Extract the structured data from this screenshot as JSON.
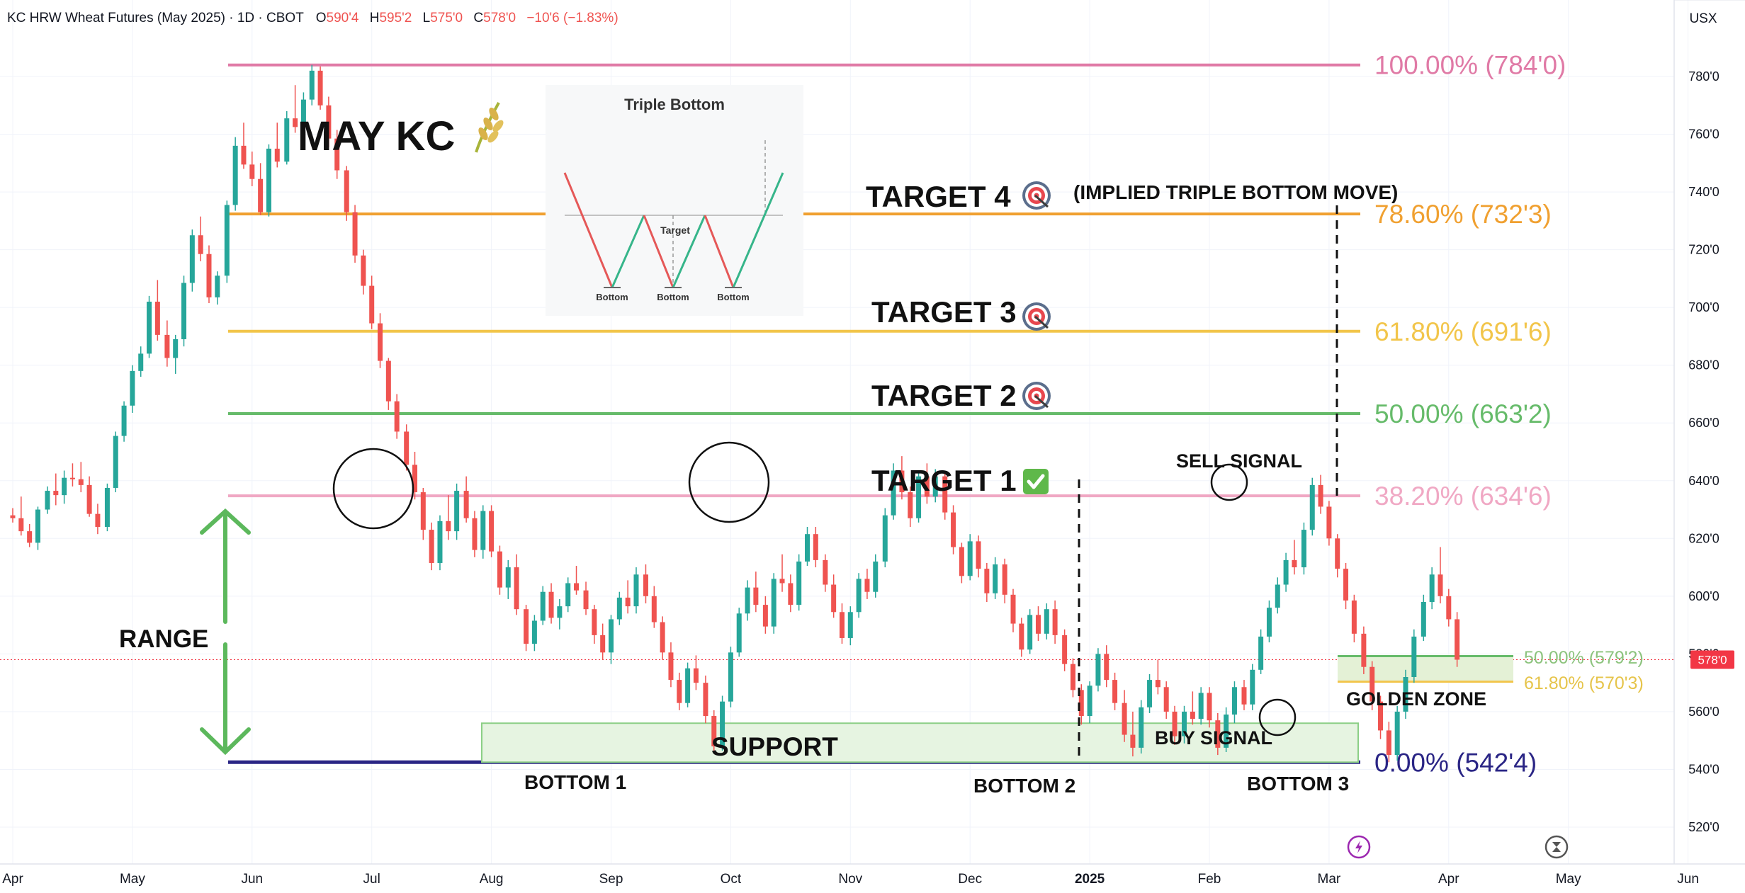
{
  "header": {
    "symbol": "KC HRW Wheat Futures (May 2025) · 1D · CBOT",
    "open_label": "O",
    "open": "590'4",
    "high_label": "H",
    "high": "595'2",
    "low_label": "L",
    "low": "575'0",
    "close_label": "C",
    "close": "578'0",
    "change": "−10'6 (−1.83%)",
    "currency": "USX"
  },
  "colors": {
    "up": "#26a69a",
    "down": "#ef5350",
    "fib100": "#e07aa6",
    "fib786": "#f0a030",
    "fib618": "#f2c54a",
    "fib50": "#66bb6a",
    "fib382": "#f0a8c4",
    "fib0": "#2a2585",
    "support_fill": "#e6f4e1",
    "support_stroke": "#8ccf86",
    "range_arrow": "#5cb85c",
    "price_tag": "#f23645"
  },
  "chart_data": {
    "type": "candlestick",
    "y_unit": "cents per bushel",
    "ylim": [
      510,
      795
    ],
    "y_ticks": [
      "520'0",
      "540'0",
      "560'0",
      "580'0",
      "600'0",
      "620'0",
      "640'0",
      "660'0",
      "680'0",
      "700'0",
      "720'0",
      "740'0",
      "760'0",
      "780'0"
    ],
    "y_tick_values": [
      520,
      540,
      560,
      580,
      600,
      620,
      640,
      660,
      680,
      700,
      720,
      740,
      760,
      780
    ],
    "x_ticks": [
      "Apr",
      "May",
      "Jun",
      "Jul",
      "Aug",
      "Sep",
      "Oct",
      "Nov",
      "Dec",
      "2025",
      "Feb",
      "Mar",
      "Apr",
      "May",
      "Jun"
    ],
    "last_price": "578'0",
    "last_price_value": 578.0,
    "fib_levels": [
      {
        "label": "100.00% (784'0)",
        "value": 784.0,
        "color_key": "fib100"
      },
      {
        "label": "78.60% (732'3)",
        "value": 732.375,
        "color_key": "fib786"
      },
      {
        "label": "61.80% (691'6)",
        "value": 691.75,
        "color_key": "fib618"
      },
      {
        "label": "50.00% (663'2)",
        "value": 663.25,
        "color_key": "fib50"
      },
      {
        "label": "38.20% (634'6)",
        "value": 634.75,
        "color_key": "fib382"
      },
      {
        "label": "0.00% (542'4)",
        "value": 542.5,
        "color_key": "fib0"
      }
    ],
    "golden_zone": {
      "label": "GOLDEN ZONE",
      "upper_label": "50.00% (579'2)",
      "upper": 579.25,
      "lower_label": "61.80% (570'3)",
      "lower": 570.375
    },
    "support": {
      "label": "SUPPORT",
      "low": 542.5,
      "high": 556
    },
    "candles": [
      [
        0.0,
        628.0,
        630.5,
        625.5,
        627.0
      ],
      [
        0.07,
        627.0,
        634.5,
        621.0,
        622.5
      ],
      [
        0.14,
        622.5,
        625.0,
        617.0,
        618.5
      ],
      [
        0.21,
        618.5,
        631.0,
        616.0,
        630.0
      ],
      [
        0.29,
        630.0,
        638.0,
        628.5,
        636.5
      ],
      [
        0.36,
        636.5,
        642.5,
        631.5,
        635.0
      ],
      [
        0.43,
        635.0,
        643.5,
        632.0,
        641.0
      ],
      [
        0.5,
        641.0,
        646.0,
        638.0,
        640.5
      ],
      [
        0.57,
        640.5,
        646.5,
        636.0,
        638.5
      ],
      [
        0.64,
        638.5,
        641.5,
        627.5,
        628.5
      ],
      [
        0.71,
        628.5,
        632.0,
        621.5,
        624.0
      ],
      [
        0.79,
        624.0,
        639.0,
        622.5,
        637.5
      ],
      [
        0.86,
        637.5,
        657.0,
        636.0,
        655.5
      ],
      [
        0.93,
        655.5,
        667.5,
        653.5,
        666.0
      ],
      [
        1.0,
        666.0,
        680.0,
        663.5,
        678.0
      ],
      [
        1.07,
        678.0,
        686.5,
        676.0,
        684.0
      ],
      [
        1.14,
        684.0,
        704.0,
        682.5,
        702.0
      ],
      [
        1.21,
        702.0,
        709.5,
        688.5,
        690.5
      ],
      [
        1.29,
        690.5,
        695.5,
        679.5,
        682.5
      ],
      [
        1.36,
        682.5,
        690.5,
        677.0,
        689.0
      ],
      [
        1.43,
        689.0,
        711.0,
        686.5,
        708.5
      ],
      [
        1.5,
        708.5,
        727.0,
        705.5,
        725.0
      ],
      [
        1.57,
        725.0,
        731.5,
        716.0,
        718.5
      ],
      [
        1.64,
        718.5,
        721.5,
        701.5,
        703.5
      ],
      [
        1.71,
        703.5,
        712.5,
        701.0,
        711.0
      ],
      [
        1.79,
        711.0,
        737.0,
        708.5,
        735.5
      ],
      [
        1.86,
        735.5,
        759.0,
        733.5,
        756.0
      ],
      [
        1.93,
        756.0,
        764.0,
        748.0,
        749.5
      ],
      [
        2.0,
        749.5,
        754.0,
        742.0,
        744.5
      ],
      [
        2.07,
        744.5,
        750.0,
        732.0,
        733.0
      ],
      [
        2.14,
        733.0,
        756.5,
        731.5,
        755.0
      ],
      [
        2.21,
        755.0,
        764.0,
        748.5,
        750.5
      ],
      [
        2.29,
        750.5,
        768.0,
        749.5,
        765.5
      ],
      [
        2.36,
        765.5,
        777.0,
        760.5,
        762.5
      ],
      [
        2.43,
        762.5,
        774.5,
        759.0,
        772.0
      ],
      [
        2.5,
        772.0,
        784.0,
        770.0,
        782.0
      ],
      [
        2.57,
        782.0,
        783.5,
        768.5,
        770.0
      ],
      [
        2.64,
        770.0,
        773.0,
        755.5,
        758.5
      ],
      [
        2.71,
        758.5,
        761.5,
        744.5,
        747.5
      ],
      [
        2.79,
        747.5,
        749.0,
        730.0,
        733.0
      ],
      [
        2.86,
        733.0,
        735.5,
        715.5,
        718.0
      ],
      [
        2.93,
        718.0,
        720.0,
        704.5,
        707.5
      ],
      [
        3.0,
        707.5,
        711.0,
        692.5,
        694.5
      ],
      [
        3.07,
        694.5,
        698.0,
        679.0,
        681.5
      ],
      [
        3.14,
        681.5,
        682.5,
        664.5,
        667.5
      ],
      [
        3.21,
        667.5,
        670.0,
        654.5,
        657.0
      ],
      [
        3.29,
        657.0,
        659.5,
        643.5,
        645.5
      ],
      [
        3.36,
        645.5,
        650.0,
        633.5,
        636.0
      ],
      [
        3.43,
        636.0,
        637.5,
        619.5,
        623.0
      ],
      [
        3.5,
        623.0,
        625.5,
        609.0,
        611.5
      ],
      [
        3.57,
        611.5,
        628.0,
        609.0,
        626.0
      ],
      [
        3.64,
        626.0,
        635.0,
        619.5,
        622.5
      ],
      [
        3.71,
        622.5,
        639.0,
        619.5,
        636.5
      ],
      [
        3.79,
        636.5,
        641.5,
        625.5,
        627.0
      ],
      [
        3.86,
        627.0,
        629.5,
        613.5,
        616.0
      ],
      [
        3.93,
        616.0,
        631.5,
        613.0,
        629.5
      ],
      [
        4.0,
        629.5,
        631.5,
        613.5,
        615.5
      ],
      [
        4.07,
        615.5,
        617.5,
        600.5,
        603.0
      ],
      [
        4.14,
        603.0,
        612.5,
        599.0,
        610.0
      ],
      [
        4.21,
        610.0,
        614.5,
        593.5,
        595.5
      ],
      [
        4.29,
        595.5,
        597.0,
        581.0,
        583.5
      ],
      [
        4.36,
        583.5,
        593.5,
        581.0,
        591.5
      ],
      [
        4.43,
        591.5,
        603.5,
        590.0,
        601.5
      ],
      [
        4.5,
        601.5,
        604.5,
        590.5,
        592.5
      ],
      [
        4.57,
        592.5,
        599.0,
        588.5,
        596.5
      ],
      [
        4.64,
        596.5,
        606.5,
        594.5,
        604.5
      ],
      [
        4.71,
        604.5,
        610.5,
        600.5,
        602.0
      ],
      [
        4.79,
        602.0,
        605.0,
        593.5,
        595.5
      ],
      [
        4.86,
        595.5,
        597.0,
        583.5,
        586.5
      ],
      [
        4.93,
        586.5,
        590.5,
        578.0,
        580.5
      ],
      [
        5.0,
        580.5,
        593.5,
        576.5,
        592.0
      ],
      [
        5.07,
        592.0,
        601.5,
        590.0,
        599.5
      ],
      [
        5.14,
        599.5,
        605.5,
        594.0,
        596.5
      ],
      [
        5.21,
        596.5,
        610.0,
        594.0,
        607.5
      ],
      [
        5.29,
        607.5,
        611.0,
        597.5,
        600.0
      ],
      [
        5.36,
        600.0,
        603.5,
        589.0,
        591.0
      ],
      [
        5.43,
        591.0,
        593.0,
        578.0,
        580.5
      ],
      [
        5.5,
        580.5,
        584.0,
        568.5,
        571.0
      ],
      [
        5.57,
        571.0,
        573.5,
        560.5,
        563.0
      ],
      [
        5.64,
        563.0,
        577.0,
        561.5,
        575.0
      ],
      [
        5.71,
        575.0,
        579.5,
        567.5,
        570.0
      ],
      [
        5.79,
        570.0,
        572.5,
        556.0,
        558.5
      ],
      [
        5.86,
        558.5,
        560.5,
        545.5,
        548.0
      ],
      [
        5.93,
        548.0,
        565.5,
        546.5,
        563.5
      ],
      [
        6.0,
        563.5,
        582.5,
        561.5,
        580.5
      ],
      [
        6.07,
        580.5,
        596.0,
        579.0,
        594.0
      ],
      [
        6.14,
        594.0,
        605.5,
        591.5,
        603.0
      ],
      [
        6.21,
        603.0,
        608.5,
        594.5,
        597.0
      ],
      [
        6.29,
        597.0,
        600.0,
        587.0,
        589.5
      ],
      [
        6.36,
        589.5,
        608.0,
        587.0,
        606.0
      ],
      [
        6.43,
        606.0,
        614.5,
        601.5,
        604.5
      ],
      [
        6.5,
        604.5,
        607.5,
        594.5,
        597.0
      ],
      [
        6.57,
        597.0,
        614.5,
        595.0,
        612.0
      ],
      [
        6.64,
        612.0,
        624.0,
        610.5,
        621.5
      ],
      [
        6.71,
        621.5,
        624.0,
        610.0,
        612.5
      ],
      [
        6.79,
        612.5,
        614.5,
        601.5,
        604.0
      ],
      [
        6.86,
        604.0,
        607.5,
        592.5,
        594.5
      ],
      [
        6.93,
        594.5,
        597.5,
        583.5,
        585.5
      ],
      [
        7.0,
        585.5,
        596.5,
        583.0,
        594.5
      ],
      [
        7.07,
        594.5,
        608.0,
        592.5,
        606.0
      ],
      [
        7.14,
        606.0,
        609.5,
        599.0,
        601.5
      ],
      [
        7.21,
        601.5,
        614.5,
        599.5,
        612.0
      ],
      [
        7.29,
        612.0,
        630.5,
        610.0,
        628.0
      ],
      [
        7.36,
        628.0,
        646.0,
        626.5,
        643.5
      ],
      [
        7.43,
        643.5,
        648.5,
        633.5,
        636.0
      ],
      [
        7.5,
        636.0,
        638.0,
        624.0,
        627.0
      ],
      [
        7.57,
        627.0,
        643.5,
        625.5,
        641.5
      ],
      [
        7.64,
        641.5,
        646.0,
        632.0,
        634.5
      ],
      [
        7.71,
        634.5,
        644.0,
        632.5,
        641.5
      ],
      [
        7.79,
        641.5,
        643.5,
        626.5,
        629.0
      ],
      [
        7.86,
        629.0,
        631.5,
        614.5,
        617.0
      ],
      [
        7.93,
        617.0,
        618.5,
        604.5,
        607.0
      ],
      [
        8.0,
        607.0,
        621.5,
        605.5,
        619.0
      ],
      [
        8.07,
        619.0,
        621.0,
        606.5,
        609.5
      ],
      [
        8.14,
        609.5,
        611.5,
        598.0,
        601.0
      ],
      [
        8.21,
        601.0,
        613.5,
        599.0,
        611.0
      ],
      [
        8.29,
        611.0,
        613.0,
        597.5,
        600.5
      ],
      [
        8.36,
        600.5,
        602.5,
        587.5,
        590.5
      ],
      [
        8.43,
        590.5,
        592.5,
        579.0,
        581.5
      ],
      [
        8.5,
        581.5,
        595.5,
        580.0,
        593.5
      ],
      [
        8.57,
        593.5,
        596.5,
        584.5,
        587.0
      ],
      [
        8.64,
        587.0,
        597.5,
        585.0,
        595.5
      ],
      [
        8.71,
        595.5,
        598.5,
        583.5,
        586.5
      ],
      [
        8.79,
        586.5,
        588.5,
        574.0,
        576.5
      ],
      [
        8.86,
        576.5,
        578.5,
        565.0,
        567.5
      ],
      [
        8.93,
        567.5,
        569.5,
        555.5,
        558.5
      ],
      [
        9.0,
        558.5,
        570.5,
        556.0,
        569.0
      ],
      [
        9.07,
        569.0,
        582.0,
        567.0,
        580.0
      ],
      [
        9.14,
        580.0,
        583.0,
        568.5,
        571.0
      ],
      [
        9.21,
        571.0,
        573.5,
        560.5,
        563.0
      ],
      [
        9.29,
        563.0,
        567.5,
        549.5,
        552.0
      ],
      [
        9.36,
        552.0,
        560.0,
        544.5,
        547.5
      ],
      [
        9.43,
        547.5,
        564.0,
        545.5,
        561.5
      ],
      [
        9.5,
        561.5,
        573.0,
        559.5,
        571.0
      ],
      [
        9.57,
        571.0,
        578.0,
        566.0,
        568.5
      ],
      [
        9.64,
        568.5,
        570.5,
        557.5,
        560.0
      ],
      [
        9.71,
        560.0,
        562.0,
        548.5,
        551.5
      ],
      [
        9.79,
        551.5,
        562.0,
        549.0,
        560.0
      ],
      [
        9.86,
        560.0,
        567.0,
        555.5,
        557.5
      ],
      [
        9.93,
        557.5,
        568.5,
        555.5,
        566.5
      ],
      [
        10.0,
        566.5,
        568.5,
        554.5,
        557.0
      ],
      [
        10.07,
        557.0,
        559.5,
        545.0,
        547.5
      ],
      [
        10.14,
        547.5,
        561.5,
        546.0,
        559.0
      ],
      [
        10.21,
        559.0,
        570.5,
        556.0,
        568.5
      ],
      [
        10.29,
        568.5,
        571.0,
        560.5,
        562.5
      ],
      [
        10.36,
        562.5,
        576.5,
        560.5,
        574.5
      ],
      [
        10.43,
        574.5,
        588.5,
        573.0,
        586.0
      ],
      [
        10.5,
        586.0,
        598.5,
        584.0,
        596.0
      ],
      [
        10.57,
        596.0,
        606.5,
        594.0,
        604.0
      ],
      [
        10.64,
        604.0,
        615.0,
        601.5,
        612.5
      ],
      [
        10.71,
        612.5,
        619.5,
        607.5,
        610.0
      ],
      [
        10.79,
        610.0,
        625.5,
        607.5,
        623.0
      ],
      [
        10.86,
        623.0,
        641.0,
        621.0,
        638.5
      ],
      [
        10.93,
        638.5,
        642.0,
        628.5,
        631.0
      ],
      [
        11.0,
        631.0,
        633.0,
        617.5,
        620.0
      ],
      [
        11.07,
        620.0,
        621.5,
        606.5,
        609.5
      ],
      [
        11.14,
        609.5,
        611.5,
        595.5,
        598.5
      ],
      [
        11.21,
        598.5,
        600.5,
        584.0,
        587.0
      ],
      [
        11.29,
        587.0,
        589.5,
        573.0,
        575.5
      ],
      [
        11.36,
        575.5,
        577.5,
        560.5,
        563.5
      ],
      [
        11.43,
        563.5,
        565.5,
        550.5,
        553.5
      ],
      [
        11.5,
        553.5,
        556.5,
        542.5,
        545.0
      ],
      [
        11.57,
        545.0,
        562.0,
        543.0,
        560.0
      ],
      [
        11.64,
        560.0,
        574.5,
        557.5,
        572.0
      ],
      [
        11.71,
        572.0,
        588.5,
        570.0,
        586.0
      ],
      [
        11.79,
        586.0,
        600.5,
        584.5,
        598.0
      ],
      [
        11.86,
        598.0,
        610.0,
        595.5,
        607.5
      ],
      [
        11.93,
        607.5,
        617.0,
        597.5,
        600.0
      ],
      [
        12.0,
        600.0,
        602.5,
        589.5,
        592.0
      ],
      [
        12.07,
        592.0,
        594.5,
        575.5,
        578.0
      ]
    ],
    "annotations": [
      {
        "name": "title",
        "text": "MAY KC"
      },
      {
        "name": "target-4",
        "text": "TARGET 4"
      },
      {
        "name": "implied-move",
        "text": "(IMPLIED TRIPLE BOTTOM MOVE)"
      },
      {
        "name": "target-3",
        "text": "TARGET 3"
      },
      {
        "name": "target-2",
        "text": "TARGET 2"
      },
      {
        "name": "target-1",
        "text": "TARGET 1"
      },
      {
        "name": "sell-signal",
        "text": "SELL SIGNAL"
      },
      {
        "name": "buy-signal",
        "text": "BUY SIGNAL"
      },
      {
        "name": "range",
        "text": "RANGE"
      },
      {
        "name": "bottom-1",
        "text": "BOTTOM 1"
      },
      {
        "name": "bottom-2",
        "text": "BOTTOM 2"
      },
      {
        "name": "bottom-3",
        "text": "BOTTOM 3"
      }
    ],
    "inset": {
      "title": "Triple Bottom",
      "target_label": "Target",
      "bottom_label": "Bottom"
    }
  }
}
